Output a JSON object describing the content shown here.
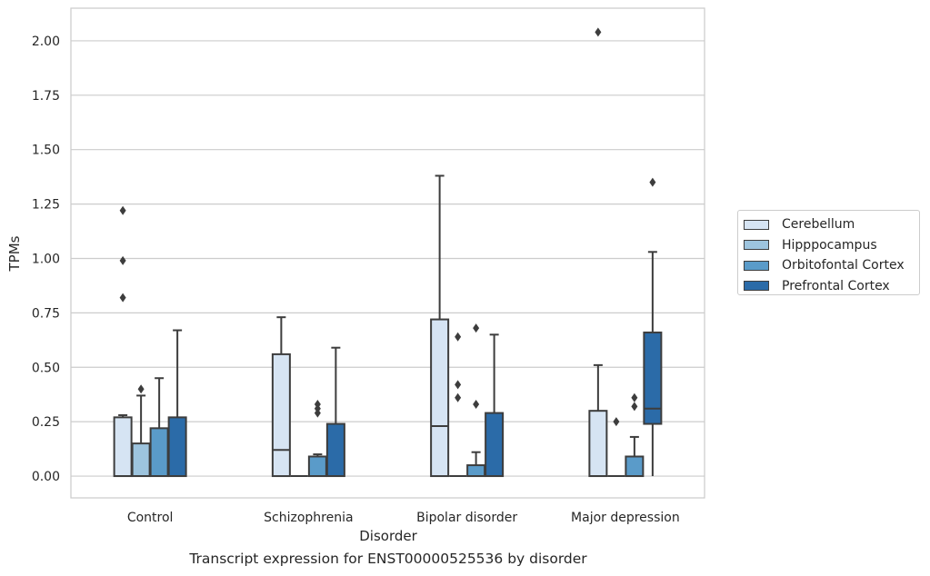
{
  "chart_data": {
    "type": "box",
    "title": "Transcript expression for ENST00000525536 by disorder",
    "xlabel": "Disorder",
    "ylabel": "TPMs",
    "ylim": [
      -0.1,
      2.15
    ],
    "yticks": [
      "0.00",
      "0.25",
      "0.50",
      "0.75",
      "1.00",
      "1.25",
      "1.50",
      "1.75",
      "2.00"
    ],
    "grid": true,
    "legend_position": "right",
    "categories": [
      "Control",
      "Schizophrenia",
      "Bipolar disorder",
      "Major depression"
    ],
    "series": [
      {
        "name": "Cerebellum",
        "color": "#d6e4f3",
        "boxes": [
          {
            "whislo": 0.0,
            "q1": 0.0,
            "med": 0.0,
            "q3": 0.27,
            "whishi": 0.28,
            "fliers": [
              0.82,
              0.99,
              1.22
            ]
          },
          {
            "whislo": 0.0,
            "q1": 0.0,
            "med": 0.12,
            "q3": 0.56,
            "whishi": 0.73,
            "fliers": []
          },
          {
            "whislo": 0.0,
            "q1": 0.0,
            "med": 0.23,
            "q3": 0.72,
            "whishi": 1.38,
            "fliers": []
          },
          {
            "whislo": 0.0,
            "q1": 0.0,
            "med": 0.0,
            "q3": 0.3,
            "whishi": 0.51,
            "fliers": [
              2.04
            ]
          }
        ]
      },
      {
        "name": "Hipppocampus",
        "color": "#9dc4de",
        "boxes": [
          {
            "whislo": 0.0,
            "q1": 0.0,
            "med": 0.0,
            "q3": 0.15,
            "whishi": 0.37,
            "fliers": [
              0.4
            ]
          },
          {
            "whislo": 0.0,
            "q1": 0.0,
            "med": 0.0,
            "q3": 0.0,
            "whishi": 0.0,
            "fliers": []
          },
          {
            "whislo": 0.0,
            "q1": 0.0,
            "med": 0.0,
            "q3": 0.0,
            "whishi": 0.0,
            "fliers": [
              0.36,
              0.42,
              0.64
            ]
          },
          {
            "whislo": 0.0,
            "q1": 0.0,
            "med": 0.0,
            "q3": 0.0,
            "whishi": 0.0,
            "fliers": [
              0.25
            ]
          }
        ]
      },
      {
        "name": "Orbitofontal Cortex",
        "color": "#5a9bc9",
        "boxes": [
          {
            "whislo": 0.0,
            "q1": 0.0,
            "med": 0.0,
            "q3": 0.22,
            "whishi": 0.45,
            "fliers": []
          },
          {
            "whislo": 0.0,
            "q1": 0.0,
            "med": 0.0,
            "q3": 0.09,
            "whishi": 0.1,
            "fliers": [
              0.29,
              0.31,
              0.33
            ]
          },
          {
            "whislo": 0.0,
            "q1": 0.0,
            "med": 0.0,
            "q3": 0.05,
            "whishi": 0.11,
            "fliers": [
              0.33,
              0.68
            ]
          },
          {
            "whislo": 0.0,
            "q1": 0.0,
            "med": 0.0,
            "q3": 0.09,
            "whishi": 0.18,
            "fliers": [
              0.32,
              0.36
            ]
          }
        ]
      },
      {
        "name": "Prefrontal Cortex",
        "color": "#2b6ba8",
        "boxes": [
          {
            "whislo": 0.0,
            "q1": 0.0,
            "med": 0.0,
            "q3": 0.27,
            "whishi": 0.67,
            "fliers": []
          },
          {
            "whislo": 0.0,
            "q1": 0.0,
            "med": 0.0,
            "q3": 0.24,
            "whishi": 0.59,
            "fliers": []
          },
          {
            "whislo": 0.0,
            "q1": 0.0,
            "med": 0.0,
            "q3": 0.29,
            "whishi": 0.65,
            "fliers": []
          },
          {
            "whislo": 0.0,
            "q1": 0.24,
            "med": 0.31,
            "q3": 0.66,
            "whishi": 1.03,
            "fliers": [
              1.35
            ]
          }
        ]
      }
    ]
  }
}
